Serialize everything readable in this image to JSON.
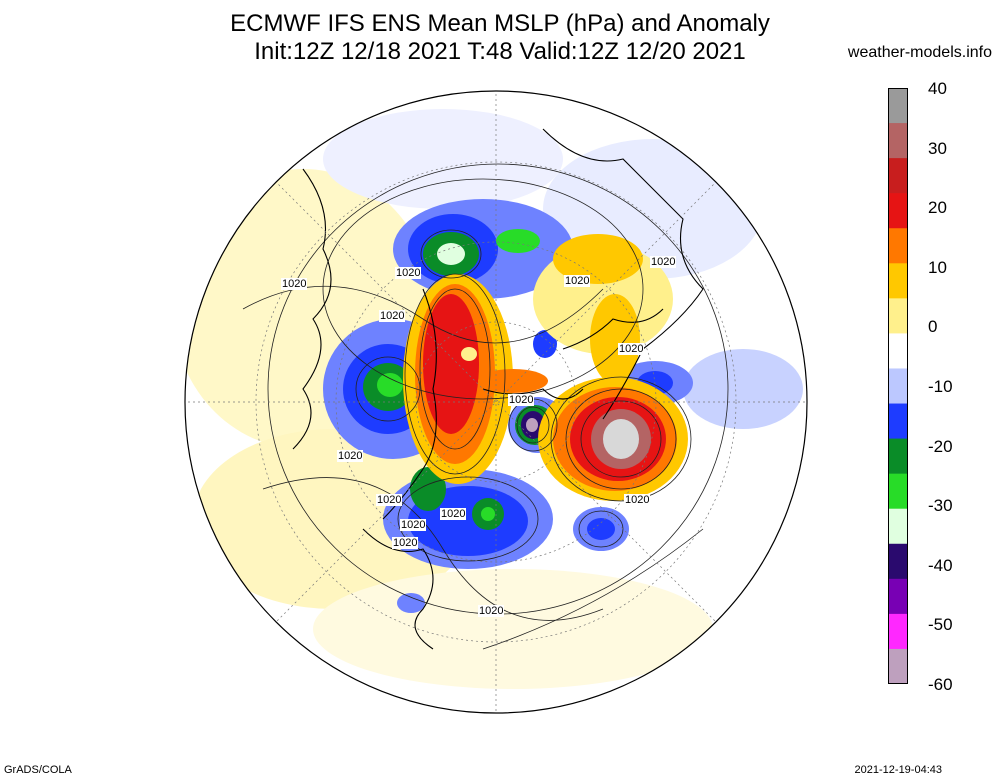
{
  "header": {
    "title_line1": "ECMWF IFS ENS Mean MSLP (hPa) and Anomaly",
    "title_line2": "Init:12Z 12/18 2021  T:48 Valid:12Z 12/20 2021",
    "site": "weather-models.info"
  },
  "colorbar": {
    "ticks": [
      {
        "label": "40",
        "value": 40
      },
      {
        "label": "30",
        "value": 30
      },
      {
        "label": "20",
        "value": 20
      },
      {
        "label": "10",
        "value": 10
      },
      {
        "label": "0",
        "value": 0
      },
      {
        "label": "-10",
        "value": -10
      },
      {
        "label": "-20",
        "value": -20
      },
      {
        "label": "-30",
        "value": -30
      },
      {
        "label": "-40",
        "value": -40
      },
      {
        "label": "-50",
        "value": -50
      },
      {
        "label": "-60",
        "value": -60
      }
    ],
    "colors": [
      "#9a9a9a",
      "#b46464",
      "#c81e1e",
      "#e61414",
      "#ff7800",
      "#ffc800",
      "#fff08c",
      "#ffffff",
      "#bcc8ff",
      "#1e3cff",
      "#0a8c28",
      "#28dc28",
      "#e0ffe0",
      "#2a0a6e",
      "#7800b4",
      "#ff28ff",
      "#bea0be"
    ]
  },
  "map": {
    "contour_labels": [
      "1020",
      "1020",
      "1020",
      "1020",
      "1020",
      "1020",
      "1020",
      "1020",
      "1020",
      "1020",
      "1020",
      "1020",
      "1020",
      "1020"
    ]
  },
  "footer": {
    "left": "GrADS/COLA",
    "right": "2021-12-19-04:43"
  }
}
